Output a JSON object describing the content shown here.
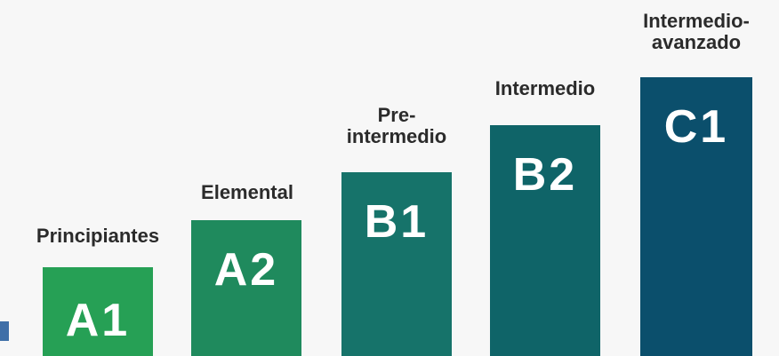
{
  "levels": [
    {
      "code": "A1",
      "label": [
        "Principiantes"
      ],
      "color": "#26a055"
    },
    {
      "code": "A2",
      "label": [
        "Elemental"
      ],
      "color": "#1f8a5d"
    },
    {
      "code": "B1",
      "label": [
        "Pre-",
        "intermedio"
      ],
      "color": "#16736a"
    },
    {
      "code": "B2",
      "label": [
        "Intermedio"
      ],
      "color": "#0f6468"
    },
    {
      "code": "C1",
      "label": [
        "Intermedio-",
        "avanzado"
      ],
      "color": "#0b4f6c"
    }
  ]
}
